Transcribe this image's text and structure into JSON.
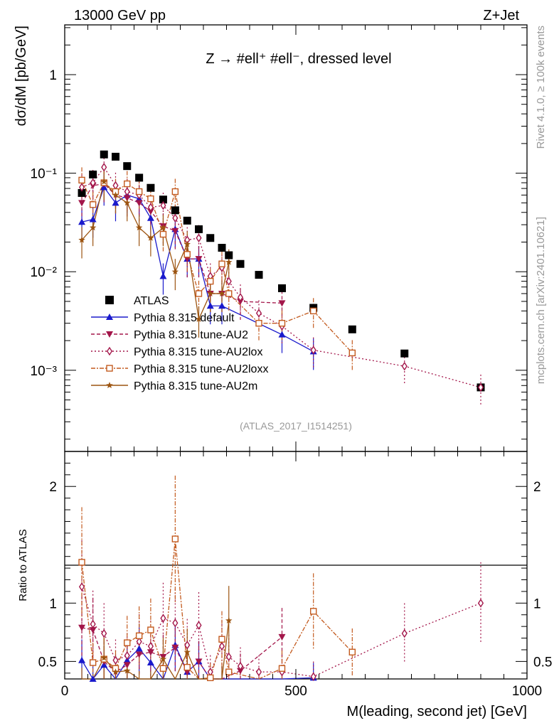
{
  "chart_data": {
    "type": "scatter",
    "header_left": "13000 GeV pp",
    "header_right": "Z+Jet",
    "title": "Z → #ell⁺ #ell⁻, dressed level",
    "analysis_label": "(ATLAS_2017_I1514251)",
    "side_label_top": "Rivet 4.1.0, ≥ 100k events",
    "side_label_bottom": "mcplots.cern.ch [arXiv:2401.10621]",
    "xlabel": "M(leading, second jet) [GeV]",
    "ylabel": "dσ/dM [pb/GeV]",
    "ratio_ylabel": "Ratio to ATLAS",
    "xlim": [
      0,
      1000
    ],
    "ylim": [
      0.00015,
      3.2
    ],
    "ratio_ylim": [
      0.35,
      2.3
    ],
    "x_ticks": [
      0,
      500,
      1000
    ],
    "x_tick_labels": [
      "0",
      "500",
      "1000"
    ],
    "y_ticks": [
      0.001,
      0.01,
      0.1,
      1
    ],
    "y_tick_labels": [
      "10⁻³",
      "10⁻²",
      "10⁻¹",
      "1"
    ],
    "ratio_ticks": [
      0.5,
      1,
      2
    ],
    "ratio_tick_labels": [
      "0.5",
      "1",
      "2"
    ],
    "x": [
      37,
      61,
      85,
      110,
      135,
      161,
      186,
      213,
      239,
      265,
      290,
      315,
      340,
      355,
      380,
      420,
      470,
      538,
      622,
      735,
      900
    ],
    "series": [
      {
        "name": "ATLAS",
        "color": "#000000",
        "marker": "square",
        "dash": "none",
        "values": [
          0.063,
          0.097,
          0.155,
          0.147,
          0.118,
          0.09,
          0.071,
          0.054,
          0.042,
          0.033,
          0.027,
          0.022,
          0.0175,
          0.0147,
          0.012,
          0.0093,
          0.0068,
          0.0043,
          0.0026,
          0.00148,
          0.00067
        ],
        "ratio": null
      },
      {
        "name": "Pythia 8.315 default",
        "color": "#1a1acc",
        "marker": "triangle-up",
        "dash": "solid",
        "values": [
          0.032,
          0.034,
          0.072,
          0.05,
          0.06,
          0.055,
          0.035,
          0.009,
          0.027,
          0.0135,
          0.0135,
          0.0045,
          0.0045,
          null,
          null,
          null,
          0.0023,
          0.00155,
          null,
          null,
          null
        ],
        "ratio": [
          0.51,
          0.35,
          0.47,
          0.34,
          0.51,
          0.61,
          0.49,
          0.17,
          0.64,
          0.41,
          0.5,
          0.2,
          0.26,
          null,
          null,
          null,
          0.34,
          0.36,
          null,
          null,
          null
        ]
      },
      {
        "name": "Pythia 8.315 tune-AU2",
        "color": "#a3164a",
        "marker": "triangle-down",
        "dash": "5,3",
        "values": [
          0.05,
          0.075,
          0.078,
          0.06,
          0.056,
          0.05,
          0.041,
          0.029,
          0.026,
          0.0135,
          0.0135,
          0.006,
          0.006,
          null,
          0.005,
          null,
          0.0048,
          null,
          null,
          null,
          null
        ],
        "ratio": [
          0.79,
          0.77,
          0.5,
          0.41,
          0.47,
          0.56,
          0.58,
          0.54,
          0.62,
          0.41,
          0.5,
          0.27,
          0.34,
          null,
          0.42,
          null,
          0.71,
          null,
          null,
          null,
          null
        ]
      },
      {
        "name": "Pythia 8.315 tune-AU2lox",
        "color": "#a3164a",
        "marker": "diamond-open",
        "dash": "2,3",
        "values": [
          0.072,
          0.08,
          0.115,
          0.075,
          0.065,
          0.06,
          0.045,
          0.047,
          0.035,
          0.021,
          0.022,
          0.009,
          0.011,
          0.008,
          0.0055,
          0.0038,
          0.0028,
          0.0016,
          null,
          0.0011,
          0.00067
        ],
        "ratio": [
          1.14,
          0.82,
          0.74,
          0.51,
          0.55,
          0.67,
          0.63,
          0.87,
          0.83,
          0.64,
          0.81,
          0.41,
          0.63,
          0.54,
          0.46,
          0.41,
          0.41,
          0.37,
          null,
          0.74,
          1.0
        ]
      },
      {
        "name": "Pythia 8.315 tune-AU2loxx",
        "color": "#c35a1e",
        "marker": "square-open",
        "dash": "6,2,2,2",
        "values": [
          0.085,
          0.048,
          0.08,
          0.065,
          0.078,
          0.065,
          0.055,
          0.024,
          0.065,
          0.015,
          0.006,
          0.008,
          0.012,
          0.006,
          null,
          0.003,
          0.003,
          0.004,
          0.0015,
          null,
          null
        ],
        "ratio": [
          1.35,
          0.49,
          0.52,
          0.44,
          0.66,
          0.72,
          0.77,
          0.44,
          1.55,
          0.45,
          0.22,
          0.36,
          0.69,
          0.41,
          null,
          0.32,
          0.44,
          0.93,
          0.58,
          null,
          null
        ]
      },
      {
        "name": "Pythia 8.315 tune-AU2m",
        "color": "#9c5410",
        "marker": "star",
        "dash": "solid",
        "values": [
          0.021,
          0.028,
          0.082,
          0.06,
          0.05,
          0.028,
          0.022,
          0.028,
          0.01,
          0.019,
          0.0033,
          0.006,
          0.006,
          0.0125,
          null,
          null,
          null,
          null,
          null,
          null,
          null
        ],
        "ratio": [
          0.33,
          0.29,
          0.53,
          0.41,
          0.42,
          0.31,
          0.31,
          0.52,
          0.24,
          0.58,
          0.12,
          0.27,
          0.34,
          0.85,
          null,
          null,
          null,
          null,
          null,
          null,
          null
        ]
      }
    ],
    "legend_position": "center-left"
  }
}
